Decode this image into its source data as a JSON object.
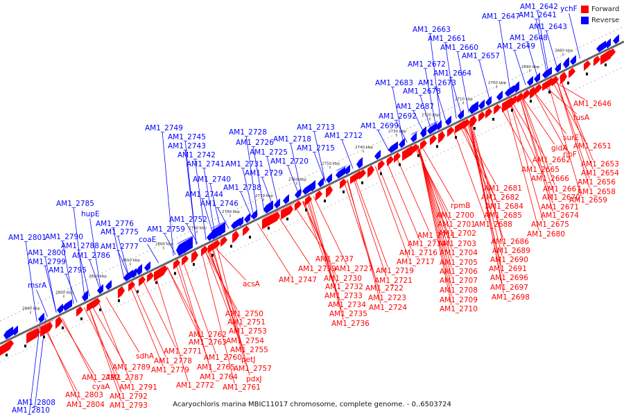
{
  "title": "Acaryochloris marina MBIC11017 chromosome, complete genome. - 0..6503724",
  "legend": {
    "forward": "Forward",
    "reverse": "Reverse"
  },
  "colors": {
    "forward": "#ff0000",
    "reverse": "#0000ff",
    "backbone": "#666666"
  },
  "ticks": [
    "2680 kbp",
    "2690 kbp",
    "2700 kbp",
    "2710 kbp",
    "2720 kbp",
    "2730 kbp",
    "2740 kbp",
    "2750 kbp",
    "2760 kbp",
    "2770 kbp",
    "2780 kbp",
    "2790 kbp",
    "2800 kbp",
    "2810 kbp",
    "2820 kbp",
    "2830 kbp",
    "2840 kbp"
  ],
  "reverse_labels": [
    "ychF",
    "AM1_2642",
    "AM1_2647",
    "AM1_2641",
    "AM1_2643",
    "AM1_2663",
    "AM1_2661",
    "AM1_2648",
    "AM1_2660",
    "AM1_2649",
    "AM1_2657",
    "AM1_2672",
    "AM1_2664",
    "AM1_2683",
    "AM1_2673",
    "AM1_2678",
    "AM1_2687",
    "AM1_2692",
    "AM1_2699",
    "AM1_2713",
    "AM1_2712",
    "AM1_2718",
    "AM1_2715",
    "AM1_2728",
    "AM1_2726",
    "AM1_2725",
    "AM1_2720",
    "AM1_2731",
    "AM1_2729",
    "AM1_2738",
    "AM1_2749",
    "AM1_2745",
    "AM1_2743",
    "AM1_2742",
    "AM1_2741",
    "AM1_2740",
    "AM1_2744",
    "AM1_2746",
    "AM1_2752",
    "AM1_2759",
    "coaE",
    "AM1_2785",
    "hupE",
    "AM1_2776",
    "AM1_2775",
    "AM1_2790",
    "AM1_2801",
    "AM1_2788",
    "AM1_2777",
    "AM1_2786",
    "AM1_2800",
    "AM1_2799",
    "AM1_2795",
    "msrA",
    "AM1_2808",
    "AM1_2810"
  ],
  "forward_labels": [
    "AM1_2646",
    "fusA",
    "surE",
    "AM1_2651",
    "ribF",
    "gidA",
    "AM1_2653",
    "AM1_2662",
    "AM1_2654",
    "AM1_2665",
    "AM1_2656",
    "AM1_2666",
    "AM1_2667",
    "AM1_2658",
    "AM1_2681",
    "AM1_2670",
    "AM1_2659",
    "AM1_2682",
    "AM1_2671",
    "rpmB",
    "AM1_2684",
    "AM1_2674",
    "AM1_2700",
    "AM1_2685",
    "AM1_2675",
    "AM1_2701",
    "AM1_2688",
    "AM1_2680",
    "AM1_2711",
    "AM1_2702",
    "AM1_2686",
    "AM1_2714",
    "AM1_2703",
    "AM1_2689",
    "AM1_2716",
    "AM1_2704",
    "AM1_2690",
    "AM1_2717",
    "AM1_2705",
    "AM1_2691",
    "AM1_2737",
    "AM1_2719",
    "AM1_2706",
    "AM1_2696",
    "AM1_2739",
    "AM1_2727",
    "AM1_2707",
    "AM1_2697",
    "AM1_2747",
    "AM1_2730",
    "AM1_2721",
    "AM1_2708",
    "AM1_2698",
    "acsA",
    "AM1_2732",
    "AM1_2722",
    "AM1_2709",
    "AM1_2733",
    "AM1_2723",
    "AM1_2710",
    "AM1_2734",
    "AM1_2724",
    "AM1_2735",
    "AM1_2750",
    "AM1_2736",
    "AM1_2751",
    "AM1_2753",
    "AM1_2762",
    "AM1_2754",
    "AM1_2763",
    "AM1_2755",
    "AM1_2771",
    "petJ",
    "sdhA",
    "AM1_2760",
    "AM1_2778",
    "AM1_2757",
    "AM1_2765",
    "AM1_2789",
    "AM1_2779",
    "AM1_2764",
    "pdxJ",
    "AM1_2797",
    "AM1_2787",
    "AM1_2772",
    "AM1_2761",
    "cyaA",
    "AM1_2791",
    "AM1_2803",
    "AM1_2792",
    "AM1_2804",
    "AM1_2793"
  ]
}
